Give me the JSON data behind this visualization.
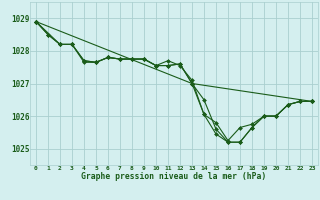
{
  "title": "Graphe pression niveau de la mer (hPa)",
  "bg_color": "#d4efef",
  "grid_color": "#aacfcf",
  "line_color": "#1a5c1a",
  "xlim": [
    -0.5,
    23.5
  ],
  "ylim": [
    1024.5,
    1029.5
  ],
  "yticks": [
    1025,
    1026,
    1027,
    1028,
    1029
  ],
  "xticks": [
    0,
    1,
    2,
    3,
    4,
    5,
    6,
    7,
    8,
    9,
    10,
    11,
    12,
    13,
    14,
    15,
    16,
    17,
    18,
    19,
    20,
    21,
    22,
    23
  ],
  "series1": {
    "x": [
      0,
      1,
      2,
      3,
      4,
      5,
      6,
      7,
      8,
      9,
      10,
      11,
      12,
      13,
      14,
      15,
      16,
      17,
      18,
      19,
      20,
      21,
      22,
      23
    ],
    "y": [
      1028.9,
      1028.5,
      1028.2,
      1028.2,
      1027.7,
      1027.65,
      1027.8,
      1027.75,
      1027.75,
      1027.75,
      1027.55,
      1027.55,
      1027.6,
      1027.0,
      1026.05,
      1025.45,
      1025.2,
      1025.2,
      1025.65,
      1026.0,
      1026.0,
      1026.35,
      1026.45,
      1026.45
    ]
  },
  "series2": {
    "x": [
      0,
      1,
      2,
      3,
      4,
      5,
      6,
      7,
      8,
      9,
      10,
      11,
      12,
      13,
      14,
      15,
      16,
      17,
      18,
      19,
      20,
      21,
      22,
      23
    ],
    "y": [
      1028.9,
      1028.5,
      1028.2,
      1028.2,
      1027.7,
      1027.65,
      1027.8,
      1027.75,
      1027.75,
      1027.75,
      1027.55,
      1027.7,
      1027.55,
      1027.1,
      1026.05,
      1025.8,
      1025.25,
      1025.65,
      1025.75,
      1026.0,
      1026.0,
      1026.35,
      1026.45,
      1026.45
    ]
  },
  "series3": {
    "x": [
      0,
      2,
      3,
      4,
      5,
      6,
      7,
      8,
      9,
      10,
      11,
      12,
      13,
      23
    ],
    "y": [
      1028.9,
      1028.2,
      1028.2,
      1027.65,
      1027.65,
      1027.8,
      1027.75,
      1027.75,
      1027.75,
      1027.55,
      1027.55,
      1027.6,
      1027.0,
      1026.45
    ]
  },
  "series4": {
    "x": [
      0,
      13,
      14,
      15,
      16,
      17,
      18,
      19,
      20,
      21,
      22,
      23
    ],
    "y": [
      1028.9,
      1027.0,
      1026.5,
      1025.6,
      1025.2,
      1025.2,
      1025.65,
      1026.0,
      1026.0,
      1026.35,
      1026.45,
      1026.45
    ]
  }
}
